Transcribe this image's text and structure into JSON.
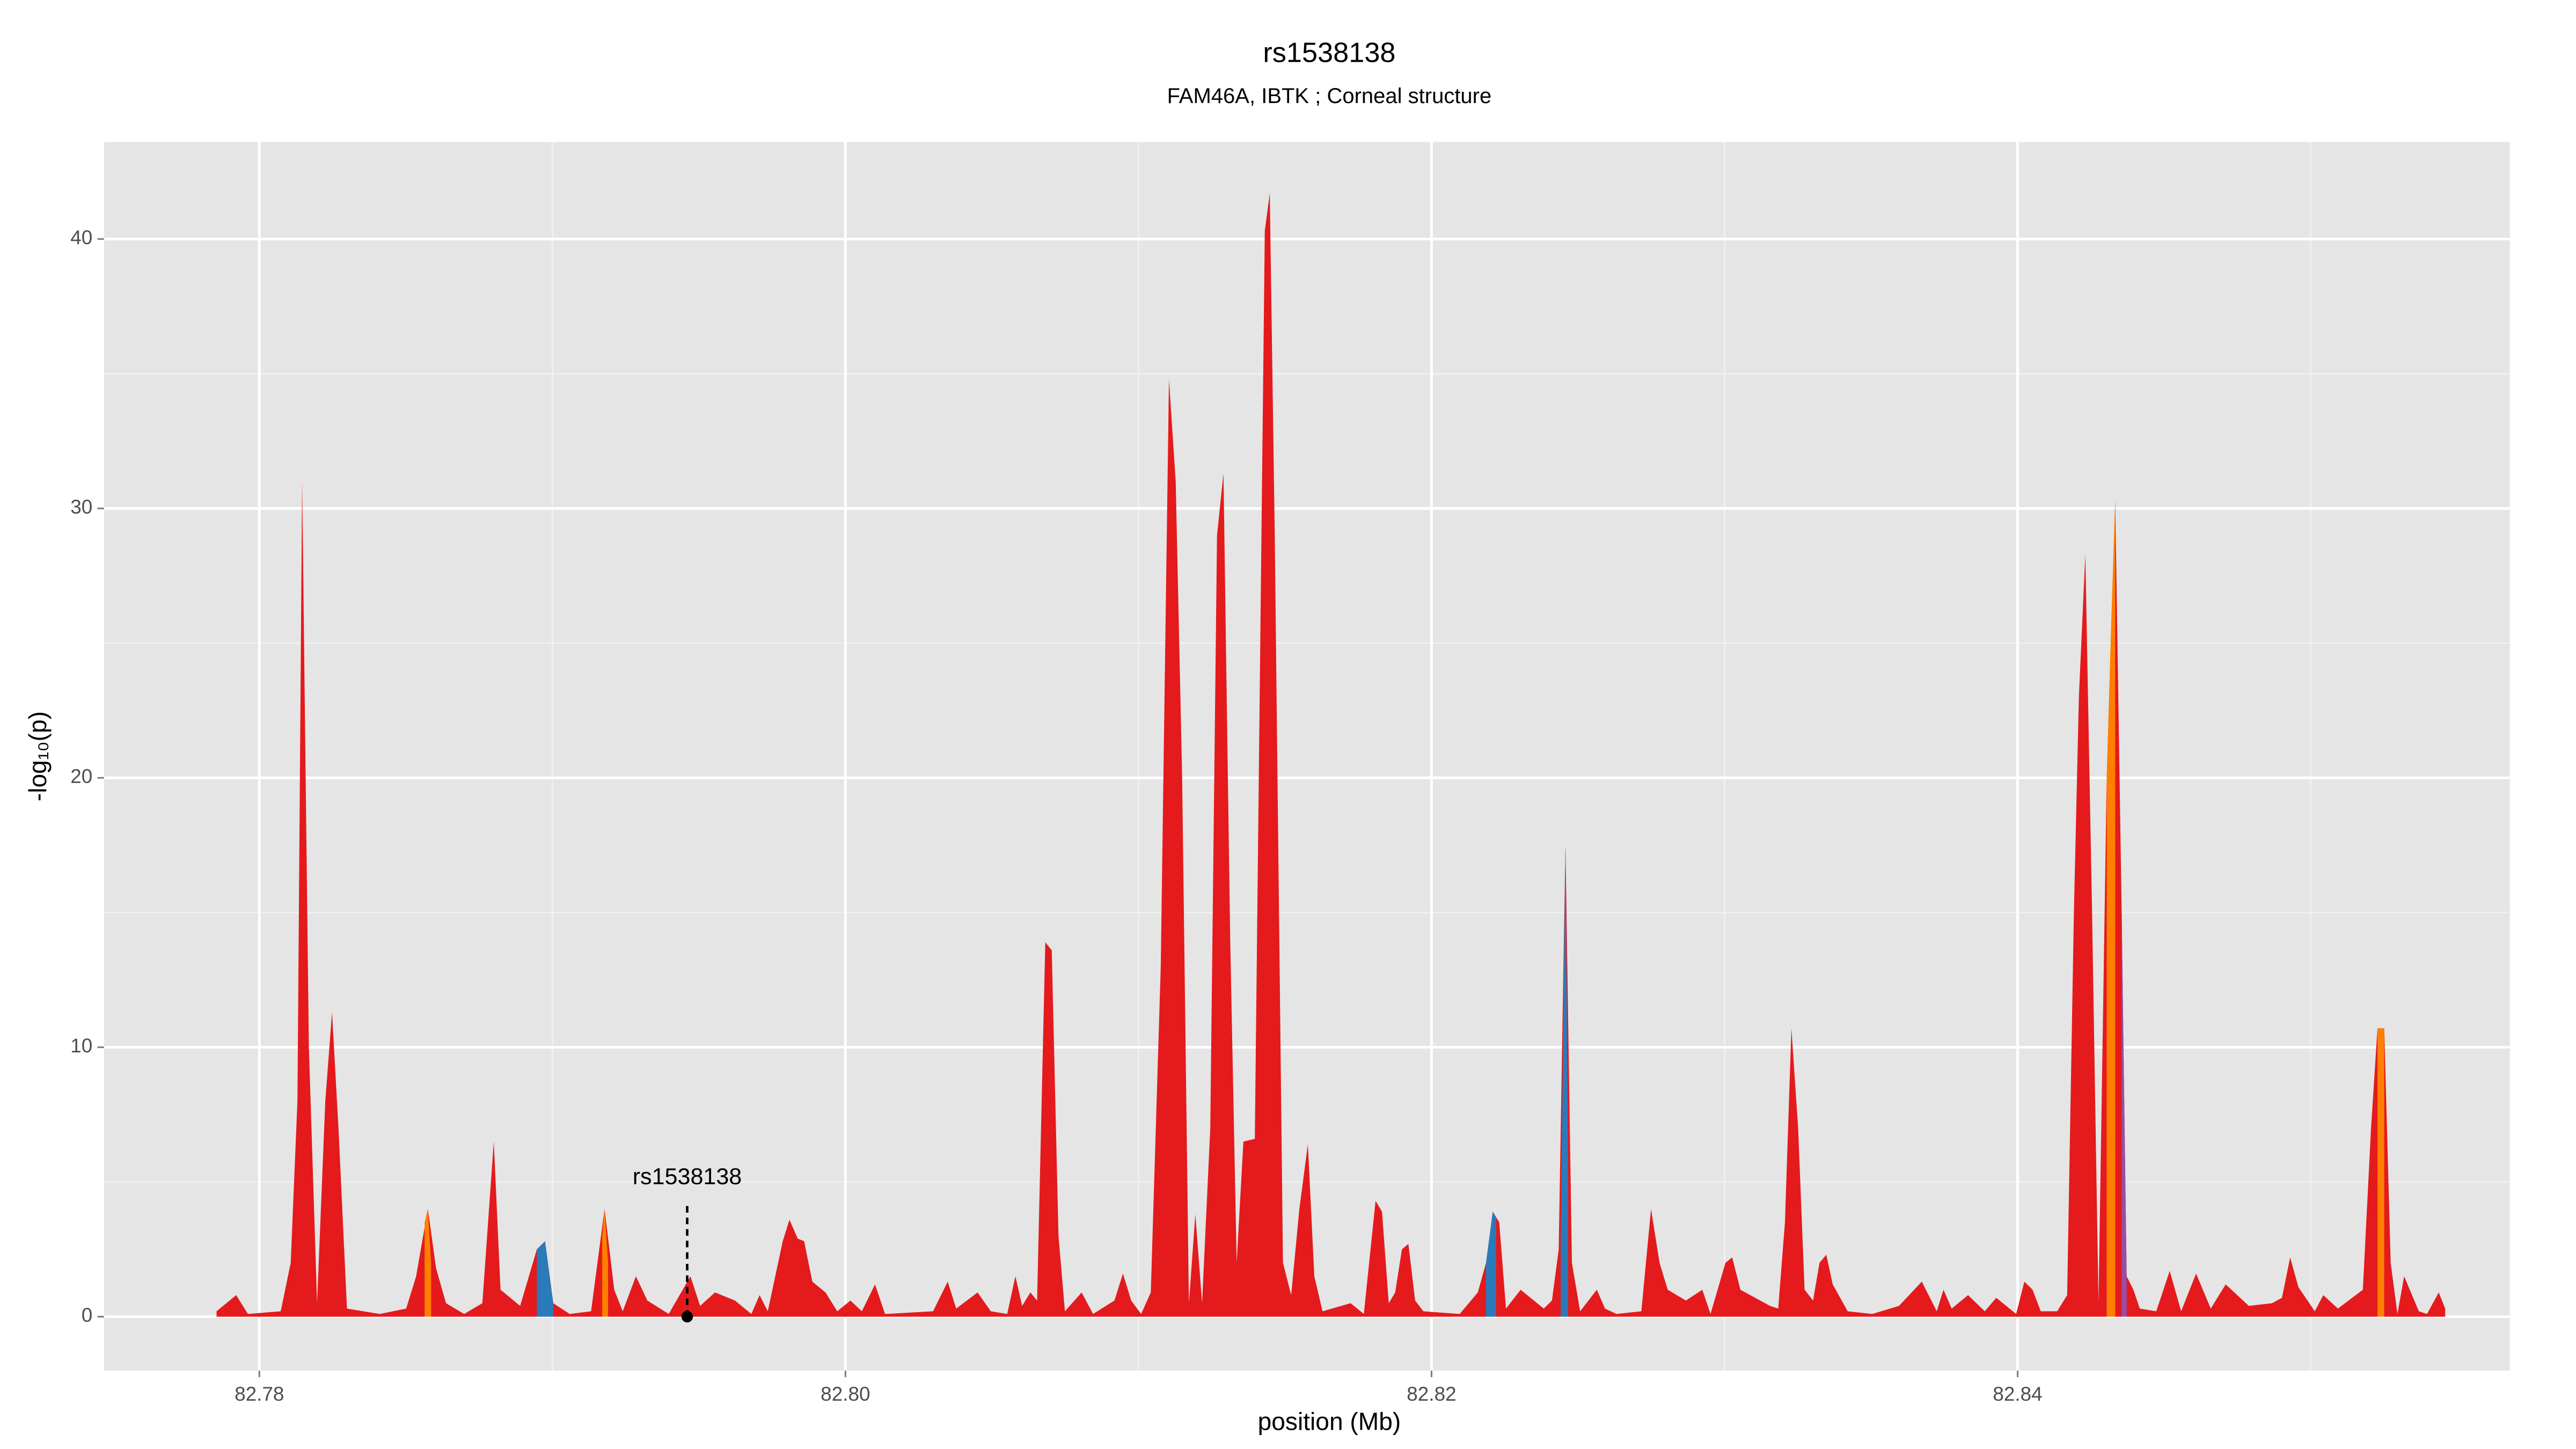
{
  "chart_data": {
    "type": "area",
    "title": "rs1538138",
    "subtitle": "FAM46A, IBTK ; Corneal structure",
    "xlabel": "position (Mb)",
    "ylabel": "-log₁₀(p)",
    "xlim": [
      82.7747,
      82.8568
    ],
    "ylim": [
      -2.0,
      43.6
    ],
    "xticks": [
      82.78,
      {
        "value": 82.8,
        "label": "82.80"
      },
      82.82,
      82.84
    ],
    "yticks": [
      0,
      10,
      20,
      30,
      40
    ],
    "x_minor_ticks": [
      82.79,
      82.81,
      82.83,
      82.85
    ],
    "y_minor_ticks": [
      5,
      15,
      25,
      35
    ],
    "grid": true,
    "series": [
      {
        "color": "#e41a1c",
        "x": [
          82.77854,
          82.77921,
          82.77961,
          82.78073,
          82.78107,
          82.7813,
          82.78146,
          82.78169,
          82.78197,
          82.78225,
          82.78248,
          82.7827,
          82.78299,
          82.78411,
          82.78501,
          82.78535,
          82.78575,
          82.78603,
          82.78637,
          82.78699,
          82.78761,
          82.788,
          82.78823,
          82.7889,
          82.78947,
          82.78975,
          82.79003,
          82.79059,
          82.79132,
          82.79178,
          82.79211,
          82.7924,
          82.79285,
          82.79324,
          82.79397,
          82.79471,
          82.79504,
          82.79555,
          82.79623,
          82.79679,
          82.79707,
          82.79735,
          82.79786,
          82.79809,
          82.79837,
          82.79859,
          82.79887,
          82.79932,
          82.79972,
          82.80017,
          82.80056,
          82.80101,
          82.80135,
          82.80299,
          82.80349,
          82.80378,
          82.80451,
          82.80496,
          82.80552,
          82.8058,
          82.80603,
          82.80631,
          82.80654,
          82.80682,
          82.80704,
          82.80727,
          82.80749,
          82.80806,
          82.80845,
          82.80918,
          82.80947,
          82.80975,
          82.81009,
          82.81042,
          82.81076,
          82.81104,
          82.81127,
          82.81149,
          82.81172,
          82.81194,
          82.81217,
          82.81245,
          82.81268,
          82.8129,
          82.81313,
          82.81335,
          82.81358,
          82.81397,
          82.81431,
          82.81448,
          82.81465,
          82.81493,
          82.81521,
          82.81549,
          82.81578,
          82.816,
          82.81628,
          82.81724,
          82.81769,
          82.81809,
          82.81831,
          82.81854,
          82.81876,
          82.81899,
          82.81921,
          82.81944,
          82.81972,
          82.82096,
          82.82158,
          82.82186,
          82.82209,
          82.82231,
          82.82254,
          82.82304,
          82.82383,
          82.82411,
          82.82434,
          82.82457,
          82.82479,
          82.82507,
          82.82564,
          82.82592,
          82.82631,
          82.82716,
          82.82749,
          82.82778,
          82.82806,
          82.82868,
          82.82924,
          82.82952,
          82.83003,
          82.83026,
          82.83054,
          82.83155,
          82.83183,
          82.83206,
          82.83228,
          82.83251,
          82.83273,
          82.83302,
          82.83324,
          82.83347,
          82.83369,
          82.8342,
          82.83504,
          82.83595,
          82.83673,
          82.83724,
          82.83747,
          82.83775,
          82.83831,
          82.83888,
          82.83927,
          82.83995,
          82.84023,
          82.84051,
          82.84079,
          82.84135,
          82.84169,
          82.84192,
          82.84209,
          82.84231,
          82.84254,
          82.84276,
          82.84304,
          82.84333,
          82.84355,
          82.84372,
          82.84395,
          82.84417,
          82.84473,
          82.84519,
          82.84558,
          82.84609,
          82.84659,
          82.8471,
          82.84789,
          82.84868,
          82.84902,
          82.8493,
          82.84958,
          82.85014,
          82.85043,
          82.85093,
          82.85178,
          82.85206,
          82.85228,
          82.85251,
          82.85273,
          82.85296,
          82.85319,
          82.85369,
          82.85397,
          82.85437,
          82.85459
        ],
        "values": [
          0.2,
          0.8,
          0.1,
          0.2,
          2,
          8,
          31,
          10,
          0.5,
          8,
          11.3,
          7,
          0.3,
          0.1,
          0.3,
          1.5,
          4,
          1.8,
          0.5,
          0.1,
          0.5,
          6.5,
          1,
          0.4,
          2.5,
          2.8,
          0.5,
          0.1,
          0.2,
          4,
          1,
          0.2,
          1.5,
          0.6,
          0.1,
          1.5,
          0.4,
          0.9,
          0.6,
          0.1,
          0.8,
          0.2,
          2.8,
          3.6,
          2.9,
          2.8,
          1.3,
          0.9,
          0.2,
          0.6,
          0.2,
          1.2,
          0.1,
          0.2,
          1.3,
          0.3,
          0.9,
          0.2,
          0.1,
          1.5,
          0.4,
          0.9,
          0.6,
          13.9,
          13.6,
          3,
          0.2,
          0.9,
          0.1,
          0.6,
          1.6,
          0.6,
          0.1,
          0.9,
          13,
          34.8,
          31,
          20,
          0.5,
          3.8,
          0.5,
          7,
          29,
          31.3,
          14,
          2,
          6.5,
          6.6,
          40.3,
          41.7,
          29,
          2,
          0.8,
          4,
          6.4,
          1.5,
          0.2,
          0.5,
          0.1,
          4.3,
          3.9,
          0.5,
          0.9,
          2.5,
          2.7,
          0.6,
          0.2,
          0.1,
          0.9,
          2,
          3.9,
          3.5,
          0.3,
          1,
          0.3,
          0.6,
          2.5,
          17.5,
          2,
          0.2,
          1,
          0.3,
          0.1,
          0.2,
          4,
          2,
          1,
          0.6,
          1,
          0.1,
          2,
          2.2,
          1,
          0.4,
          0.3,
          3.5,
          10.7,
          7,
          1,
          0.6,
          2,
          2.3,
          1.2,
          0.2,
          0.1,
          0.4,
          1.3,
          0.2,
          1,
          0.3,
          0.8,
          0.2,
          0.7,
          0.1,
          1.3,
          1,
          0.2,
          0.2,
          0.8,
          15,
          23,
          28.3,
          15,
          0.5,
          20,
          30.3,
          15,
          1.5,
          1,
          0.3,
          0.2,
          1.7,
          0.2,
          1.6,
          0.3,
          1.2,
          0.4,
          0.5,
          0.7,
          2.2,
          1.1,
          0.2,
          0.8,
          0.3,
          1,
          7,
          10.7,
          10.7,
          2,
          0.1,
          1.5,
          0.2,
          0.1,
          0.9,
          0.3
        ]
      },
      {
        "color": "#2b7bba",
        "x": [
          82.78947,
          82.78975,
          82.79003
        ],
        "values": [
          2.5,
          2.8,
          0.5
        ]
      },
      {
        "color": "#2b7bba",
        "x": [
          82.82441,
          82.82457,
          82.82466
        ],
        "values": [
          3,
          17.5,
          5
        ]
      },
      {
        "color": "#2b7bba",
        "x": [
          82.82186,
          82.82209,
          82.8222
        ],
        "values": [
          2,
          3.9,
          3.7
        ]
      },
      {
        "color": "#ff7f00",
        "x": [
          82.78564,
          82.78575,
          82.78586
        ],
        "values": [
          3.5,
          4,
          2
        ]
      },
      {
        "color": "#ff7f00",
        "x": [
          82.7917,
          82.79178,
          82.7919
        ],
        "values": [
          3,
          4,
          2
        ]
      },
      {
        "color": "#ff7f00",
        "x": [
          82.84304,
          82.8432,
          82.84333
        ],
        "values": [
          20,
          26,
          30.3
        ]
      },
      {
        "color": "#ff7f00",
        "x": [
          82.85228,
          82.8524,
          82.85251
        ],
        "values": [
          10.7,
          10.7,
          10.7
        ]
      },
      {
        "color": "#984ea3",
        "x": [
          82.84355,
          82.84372
        ],
        "values": [
          15,
          1.5
        ]
      }
    ],
    "annotation": {
      "text": "rs1538138",
      "x": 82.7946,
      "y": 0
    }
  }
}
